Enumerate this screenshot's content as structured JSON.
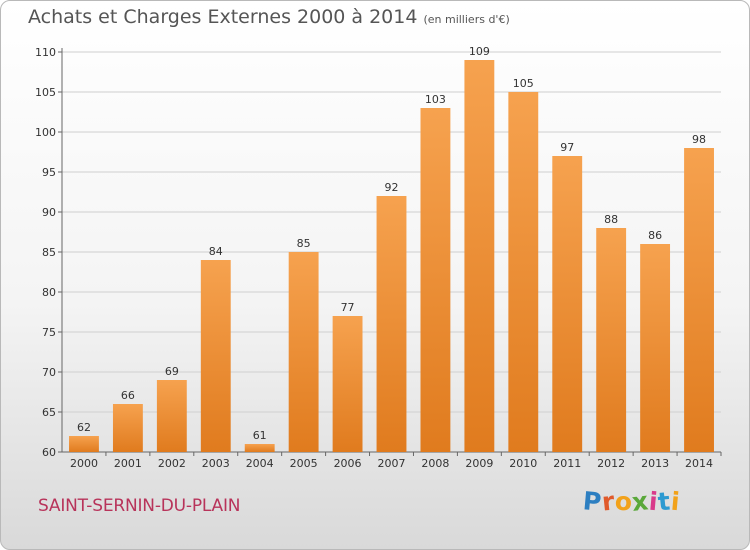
{
  "header": {
    "title": "Achats et Charges Externes 2000 à 2014",
    "subtitle": "(en milliers d'€)"
  },
  "place_name": "SAINT-SERNIN-DU-PLAIN",
  "logo": {
    "text": "Proxiti",
    "letters": [
      "P",
      "r",
      "o",
      "x",
      "i",
      "t",
      "i"
    ],
    "colors": [
      "#2d7fc1",
      "#e05a2b",
      "#f2a21b",
      "#5aa83a",
      "#d93a8a",
      "#2d9ad1",
      "#f2a21b"
    ]
  },
  "colors": {
    "bar_top": "#f6a24f",
    "bar_bottom": "#e07b1e",
    "grid": "#cfcfcf",
    "axis": "#666666"
  },
  "chart_data": {
    "type": "bar",
    "categories": [
      "2000",
      "2001",
      "2002",
      "2003",
      "2004",
      "2005",
      "2006",
      "2007",
      "2008",
      "2009",
      "2010",
      "2011",
      "2012",
      "2013",
      "2014"
    ],
    "values": [
      62,
      66,
      69,
      84,
      61,
      85,
      77,
      92,
      103,
      109,
      105,
      97,
      88,
      86,
      98
    ],
    "yticks": [
      60,
      65,
      70,
      75,
      80,
      85,
      90,
      95,
      100,
      105,
      110
    ],
    "ylim": [
      60,
      110
    ],
    "grid": true
  }
}
